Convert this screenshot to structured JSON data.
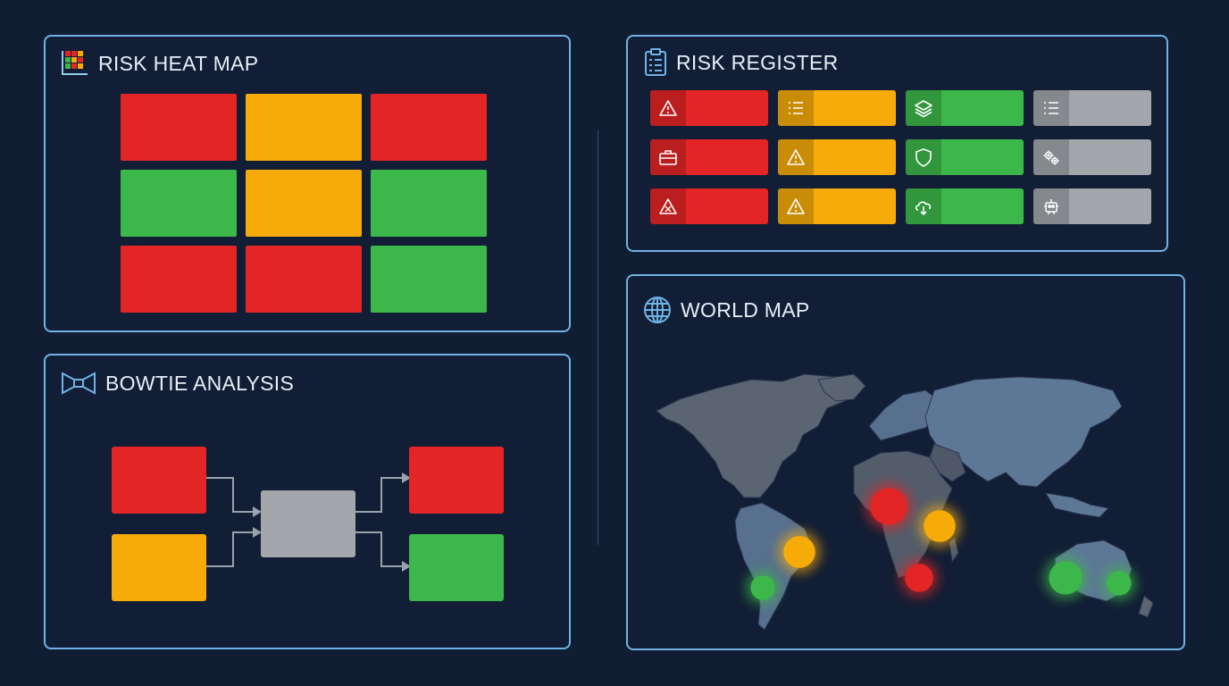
{
  "colors": {
    "background": "#111d33",
    "panel_border": "#6fb3e6",
    "red": "#e32526",
    "amber": "#f6ab09",
    "green": "#3cb84a",
    "gray": "#a3a6ab"
  },
  "heat_map": {
    "title": "RISK HEAT MAP",
    "icon": "grid-chart-icon",
    "cells": [
      [
        "red",
        "amber",
        "red"
      ],
      [
        "green",
        "amber",
        "green"
      ],
      [
        "red",
        "red",
        "green"
      ]
    ]
  },
  "risk_register": {
    "title": "RISK REGISTER",
    "icon": "clipboard-icon",
    "rows": [
      [
        {
          "color": "red",
          "icon": "warning-icon"
        },
        {
          "color": "amber",
          "icon": "list-icon"
        },
        {
          "color": "green",
          "icon": "layers-icon"
        },
        {
          "color": "gray",
          "icon": "list-icon"
        }
      ],
      [
        {
          "color": "red",
          "icon": "briefcase-icon"
        },
        {
          "color": "amber",
          "icon": "warning-icon"
        },
        {
          "color": "green",
          "icon": "shield-icon"
        },
        {
          "color": "gray",
          "icon": "gears-icon"
        }
      ],
      [
        {
          "color": "red",
          "icon": "warning-tools-icon"
        },
        {
          "color": "amber",
          "icon": "warning-icon"
        },
        {
          "color": "green",
          "icon": "cloud-icon"
        },
        {
          "color": "gray",
          "icon": "robot-icon"
        }
      ]
    ]
  },
  "bowtie": {
    "title": "BOWTIE ANALYSIS",
    "icon": "bowtie-icon",
    "causes": [
      "red",
      "amber"
    ],
    "event": "gray",
    "consequences": [
      "red",
      "green"
    ]
  },
  "world_map": {
    "title": "WORLD MAP",
    "icon": "globe-icon",
    "hotspots": [
      {
        "region": "west-africa",
        "color": "red",
        "level": 0.9
      },
      {
        "region": "east-africa",
        "color": "amber",
        "level": 0.7
      },
      {
        "region": "southern-africa",
        "color": "red",
        "level": 0.55
      },
      {
        "region": "brazil",
        "color": "amber",
        "level": 0.7
      },
      {
        "region": "argentina",
        "color": "green",
        "level": 0.4
      },
      {
        "region": "western-australia",
        "color": "green",
        "level": 0.75
      },
      {
        "region": "eastern-australia",
        "color": "green",
        "level": 0.4
      }
    ]
  }
}
